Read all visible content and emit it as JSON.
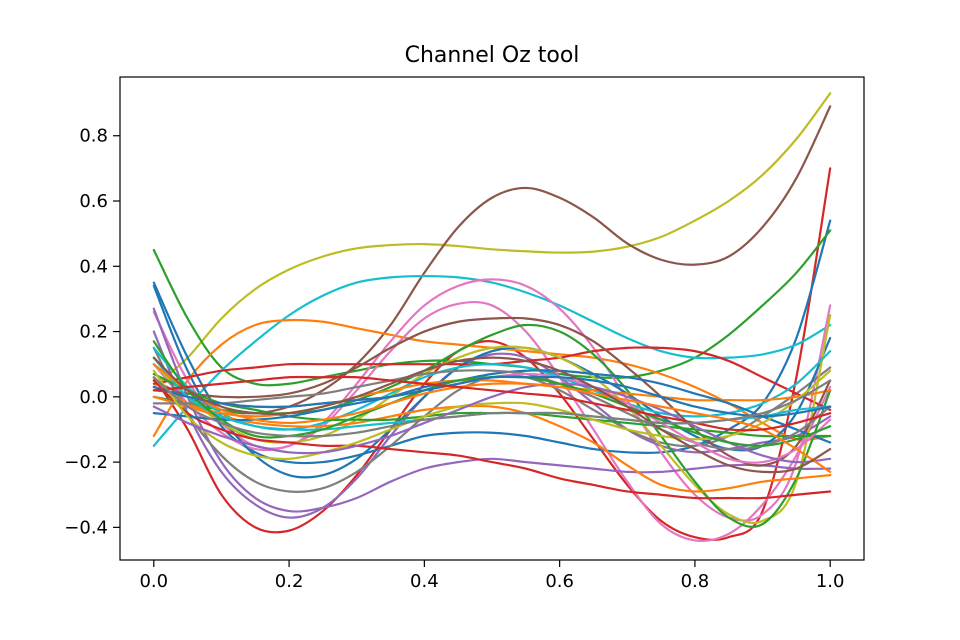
{
  "chart_data": {
    "type": "line",
    "title": "Channel Oz tool",
    "xlabel": "",
    "ylabel": "",
    "xlim": [
      -0.05,
      1.05
    ],
    "ylim": [
      -0.5,
      0.98
    ],
    "grid": false,
    "legend": "none",
    "x_ticks": [
      0.0,
      0.2,
      0.4,
      0.6,
      0.8,
      1.0
    ],
    "x_tick_labels": [
      "0.0",
      "0.2",
      "0.4",
      "0.6",
      "0.8",
      "1.0"
    ],
    "y_ticks": [
      -0.4,
      -0.2,
      0.0,
      0.2,
      0.4,
      0.6,
      0.8
    ],
    "y_tick_labels": [
      "−0.4",
      "−0.2",
      "0.0",
      "0.2",
      "0.4",
      "0.6",
      "0.8"
    ],
    "x": [
      0.0,
      0.05,
      0.1,
      0.15,
      0.2,
      0.25,
      0.3,
      0.35,
      0.4,
      0.45,
      0.5,
      0.55,
      0.6,
      0.65,
      0.7,
      0.75,
      0.8,
      0.85,
      0.9,
      0.95,
      1.0
    ],
    "series": [
      {
        "color": "#bcbd22",
        "values": [
          0.03,
          0.12,
          0.24,
          0.33,
          0.39,
          0.43,
          0.455,
          0.465,
          0.468,
          0.462,
          0.452,
          0.446,
          0.442,
          0.445,
          0.46,
          0.49,
          0.54,
          0.6,
          0.68,
          0.79,
          0.93
        ]
      },
      {
        "color": "#8c564b",
        "values": [
          0.05,
          0.0,
          -0.04,
          -0.05,
          -0.03,
          0.02,
          0.1,
          0.22,
          0.38,
          0.52,
          0.61,
          0.64,
          0.61,
          0.55,
          0.47,
          0.42,
          0.405,
          0.43,
          0.52,
          0.67,
          0.89
        ]
      },
      {
        "color": "#d62728",
        "values": [
          0.06,
          -0.1,
          -0.3,
          -0.4,
          -0.41,
          -0.35,
          -0.24,
          -0.1,
          0.04,
          0.14,
          0.17,
          0.12,
          0.01,
          -0.13,
          -0.27,
          -0.38,
          -0.43,
          -0.43,
          -0.35,
          0.06,
          0.7
        ]
      },
      {
        "color": "#1f77b4",
        "values": [
          0.34,
          0.08,
          -0.09,
          -0.17,
          -0.2,
          -0.2,
          -0.18,
          -0.15,
          -0.12,
          -0.11,
          -0.11,
          -0.12,
          -0.14,
          -0.16,
          -0.17,
          -0.17,
          -0.15,
          -0.1,
          -0.02,
          0.18,
          0.54
        ]
      },
      {
        "color": "#2ca02c",
        "values": [
          0.45,
          0.24,
          0.09,
          0.04,
          0.04,
          0.06,
          0.08,
          0.1,
          0.11,
          0.11,
          0.1,
          0.09,
          0.07,
          0.06,
          0.06,
          0.08,
          0.12,
          0.19,
          0.28,
          0.38,
          0.51
        ]
      },
      {
        "color": "#17becf",
        "values": [
          -0.15,
          -0.03,
          0.08,
          0.17,
          0.25,
          0.31,
          0.35,
          0.366,
          0.37,
          0.366,
          0.35,
          0.32,
          0.28,
          0.23,
          0.18,
          0.14,
          0.12,
          0.12,
          0.13,
          0.16,
          0.22
        ]
      },
      {
        "color": "#ff7f0e",
        "values": [
          -0.12,
          0.05,
          0.16,
          0.22,
          0.235,
          0.23,
          0.21,
          0.19,
          0.17,
          0.16,
          0.15,
          0.14,
          0.13,
          0.12,
          0.1,
          0.07,
          0.03,
          -0.02,
          -0.08,
          -0.13,
          -0.12
        ]
      },
      {
        "color": "#e377c2",
        "values": [
          0.26,
          0.05,
          -0.08,
          -0.15,
          -0.15,
          -0.08,
          0.04,
          0.17,
          0.28,
          0.34,
          0.36,
          0.34,
          0.27,
          0.15,
          -0.01,
          -0.17,
          -0.3,
          -0.37,
          -0.36,
          -0.2,
          0.28
        ]
      },
      {
        "color": "#e377c2",
        "values": [
          0.1,
          -0.02,
          -0.11,
          -0.16,
          -0.15,
          -0.09,
          0.02,
          0.14,
          0.24,
          0.285,
          0.28,
          0.2,
          0.06,
          -0.1,
          -0.26,
          -0.39,
          -0.44,
          -0.42,
          -0.33,
          -0.18,
          0.03
        ]
      },
      {
        "color": "#9467bd",
        "values": [
          0.27,
          0.0,
          -0.2,
          -0.31,
          -0.35,
          -0.34,
          -0.31,
          -0.26,
          -0.22,
          -0.2,
          -0.19,
          -0.2,
          -0.21,
          -0.22,
          -0.23,
          -0.23,
          -0.22,
          -0.21,
          -0.21,
          -0.22,
          -0.22
        ]
      },
      {
        "color": "#9467bd",
        "values": [
          0.2,
          -0.05,
          -0.23,
          -0.33,
          -0.37,
          -0.34,
          -0.25,
          -0.12,
          0.0,
          0.09,
          0.13,
          0.12,
          0.06,
          -0.02,
          -0.1,
          -0.15,
          -0.17,
          -0.16,
          -0.14,
          -0.12,
          -0.06
        ]
      },
      {
        "color": "#7f7f7f",
        "values": [
          0.15,
          -0.05,
          -0.18,
          -0.26,
          -0.29,
          -0.28,
          -0.23,
          -0.15,
          -0.06,
          0.02,
          0.06,
          0.06,
          0.02,
          -0.04,
          -0.1,
          -0.14,
          -0.15,
          -0.12,
          -0.06,
          0.01,
          0.09
        ]
      },
      {
        "color": "#1f77b4",
        "values": [
          0.35,
          0.12,
          -0.06,
          -0.18,
          -0.24,
          -0.24,
          -0.19,
          -0.1,
          0.0,
          0.09,
          0.14,
          0.15,
          0.12,
          0.07,
          0.01,
          -0.06,
          -0.12,
          -0.16,
          -0.15,
          -0.05,
          0.18
        ]
      },
      {
        "color": "#d62728",
        "values": [
          0.04,
          0.06,
          0.08,
          0.09,
          0.1,
          0.1,
          0.1,
          0.1,
          0.1,
          0.1,
          0.1,
          0.11,
          0.12,
          0.14,
          0.15,
          0.15,
          0.14,
          0.11,
          0.06,
          0.01,
          -0.04
        ]
      },
      {
        "color": "#bcbd22",
        "values": [
          0.1,
          0.0,
          -0.08,
          -0.13,
          -0.14,
          -0.12,
          -0.07,
          0.0,
          0.07,
          0.12,
          0.15,
          0.15,
          0.12,
          0.06,
          -0.03,
          -0.15,
          -0.27,
          -0.36,
          -0.38,
          -0.26,
          0.25
        ]
      },
      {
        "color": "#2ca02c",
        "values": [
          0.0,
          -0.02,
          -0.04,
          -0.05,
          -0.05,
          -0.04,
          -0.01,
          0.03,
          0.08,
          0.14,
          0.19,
          0.22,
          0.2,
          0.13,
          0.02,
          -0.12,
          -0.26,
          -0.37,
          -0.39,
          -0.25,
          0.02
        ]
      },
      {
        "color": "#17becf",
        "values": [
          0.15,
          0.03,
          -0.05,
          -0.09,
          -0.1,
          -0.08,
          -0.04,
          0.01,
          0.06,
          0.09,
          0.1,
          0.09,
          0.06,
          0.02,
          -0.02,
          -0.05,
          -0.06,
          -0.05,
          -0.02,
          0.04,
          0.14
        ]
      },
      {
        "color": "#ff7f0e",
        "values": [
          0.05,
          -0.02,
          -0.05,
          -0.06,
          -0.05,
          -0.03,
          0.0,
          0.02,
          0.04,
          0.05,
          0.05,
          0.04,
          0.03,
          0.02,
          0.01,
          0.0,
          -0.01,
          -0.01,
          -0.01,
          0.0,
          0.02
        ]
      },
      {
        "color": "#8c564b",
        "values": [
          0.02,
          0.01,
          0.0,
          0.0,
          0.01,
          0.04,
          0.09,
          0.15,
          0.2,
          0.23,
          0.24,
          0.24,
          0.22,
          0.17,
          0.09,
          0.0,
          -0.1,
          -0.18,
          -0.21,
          -0.15,
          0.05
        ]
      },
      {
        "color": "#d62728",
        "values": [
          0.05,
          -0.05,
          -0.1,
          -0.13,
          -0.14,
          -0.15,
          -0.15,
          -0.16,
          -0.17,
          -0.18,
          -0.2,
          -0.22,
          -0.25,
          -0.27,
          -0.29,
          -0.3,
          -0.31,
          -0.31,
          -0.31,
          -0.3,
          -0.29
        ]
      },
      {
        "color": "#ff7f0e",
        "values": [
          0.0,
          -0.03,
          -0.06,
          -0.08,
          -0.09,
          -0.09,
          -0.08,
          -0.06,
          -0.04,
          -0.03,
          -0.03,
          -0.05,
          -0.09,
          -0.14,
          -0.21,
          -0.27,
          -0.29,
          -0.28,
          -0.26,
          -0.25,
          -0.24
        ]
      },
      {
        "color": "#2ca02c",
        "values": [
          0.07,
          0.02,
          -0.02,
          -0.04,
          -0.06,
          -0.07,
          -0.07,
          -0.07,
          -0.06,
          -0.05,
          -0.05,
          -0.05,
          -0.06,
          -0.07,
          -0.08,
          -0.09,
          -0.1,
          -0.11,
          -0.12,
          -0.12,
          -0.12
        ]
      },
      {
        "color": "#1f77b4",
        "values": [
          -0.05,
          -0.06,
          -0.07,
          -0.07,
          -0.06,
          -0.04,
          -0.02,
          0.0,
          0.03,
          0.05,
          0.07,
          0.08,
          0.08,
          0.07,
          0.06,
          0.04,
          0.01,
          -0.02,
          -0.06,
          -0.1,
          -0.14
        ]
      },
      {
        "color": "#7f7f7f",
        "values": [
          -0.02,
          -0.02,
          -0.02,
          -0.01,
          0.0,
          0.01,
          0.03,
          0.05,
          0.07,
          0.08,
          0.08,
          0.07,
          0.04,
          0.0,
          -0.05,
          -0.1,
          -0.14,
          -0.16,
          -0.15,
          -0.11,
          -0.03
        ]
      },
      {
        "color": "#bcbd22",
        "values": [
          0.08,
          -0.06,
          -0.14,
          -0.18,
          -0.19,
          -0.17,
          -0.14,
          -0.1,
          -0.06,
          -0.03,
          -0.02,
          -0.02,
          -0.04,
          -0.07,
          -0.1,
          -0.12,
          -0.13,
          -0.12,
          -0.08,
          -0.01,
          0.08
        ]
      },
      {
        "color": "#17becf",
        "values": [
          0.12,
          0.0,
          -0.06,
          -0.09,
          -0.1,
          -0.1,
          -0.09,
          -0.08,
          -0.07,
          -0.06,
          -0.05,
          -0.05,
          -0.05,
          -0.06,
          -0.07,
          -0.08,
          -0.08,
          -0.07,
          -0.06,
          -0.04,
          -0.03
        ]
      },
      {
        "color": "#e377c2",
        "values": [
          0.03,
          0.0,
          -0.02,
          -0.03,
          -0.03,
          -0.02,
          -0.01,
          0.0,
          0.02,
          0.04,
          0.06,
          0.07,
          0.06,
          0.03,
          -0.02,
          -0.08,
          -0.14,
          -0.19,
          -0.2,
          -0.16,
          -0.07
        ]
      },
      {
        "color": "#9467bd",
        "values": [
          -0.03,
          -0.08,
          -0.12,
          -0.15,
          -0.17,
          -0.17,
          -0.15,
          -0.12,
          -0.08,
          -0.04,
          0.0,
          0.03,
          0.04,
          0.03,
          0.0,
          -0.04,
          -0.09,
          -0.14,
          -0.18,
          -0.2,
          -0.19
        ]
      },
      {
        "color": "#2ca02c",
        "values": [
          0.17,
          0.02,
          -0.07,
          -0.12,
          -0.12,
          -0.1,
          -0.06,
          -0.02,
          0.02,
          0.05,
          0.06,
          0.06,
          0.04,
          0.01,
          -0.03,
          -0.07,
          -0.11,
          -0.14,
          -0.15,
          -0.13,
          -0.09
        ]
      },
      {
        "color": "#ff7f0e",
        "values": [
          0.1,
          0.02,
          -0.04,
          -0.07,
          -0.08,
          -0.07,
          -0.05,
          -0.02,
          0.01,
          0.03,
          0.04,
          0.04,
          0.03,
          0.01,
          -0.01,
          -0.03,
          -0.05,
          -0.07,
          -0.1,
          -0.16,
          -0.23
        ]
      },
      {
        "color": "#1f77b4",
        "values": [
          0.03,
          0.0,
          -0.02,
          -0.03,
          -0.03,
          -0.02,
          -0.01,
          0.0,
          0.02,
          0.04,
          0.06,
          0.06,
          0.06,
          0.05,
          0.03,
          0.0,
          -0.03,
          -0.05,
          -0.06,
          -0.05,
          -0.03
        ]
      },
      {
        "color": "#d62728",
        "values": [
          0.02,
          0.03,
          0.04,
          0.05,
          0.06,
          0.06,
          0.06,
          0.05,
          0.04,
          0.03,
          0.02,
          0.01,
          0.0,
          -0.02,
          -0.04,
          -0.06,
          -0.08,
          -0.1,
          -0.1,
          -0.08,
          -0.05
        ]
      },
      {
        "color": "#8c564b",
        "values": [
          0.12,
          0.02,
          -0.03,
          -0.05,
          -0.05,
          -0.03,
          0.0,
          0.04,
          0.08,
          0.11,
          0.12,
          0.11,
          0.08,
          0.03,
          -0.03,
          -0.1,
          -0.16,
          -0.21,
          -0.23,
          -0.22,
          -0.16
        ]
      },
      {
        "color": "#7f7f7f",
        "values": [
          0.06,
          -0.03,
          -0.08,
          -0.11,
          -0.12,
          -0.12,
          -0.11,
          -0.09,
          -0.07,
          -0.06,
          -0.05,
          -0.05,
          -0.05,
          -0.06,
          -0.07,
          -0.08,
          -0.08,
          -0.07,
          -0.05,
          -0.01,
          0.05
        ]
      }
    ]
  }
}
